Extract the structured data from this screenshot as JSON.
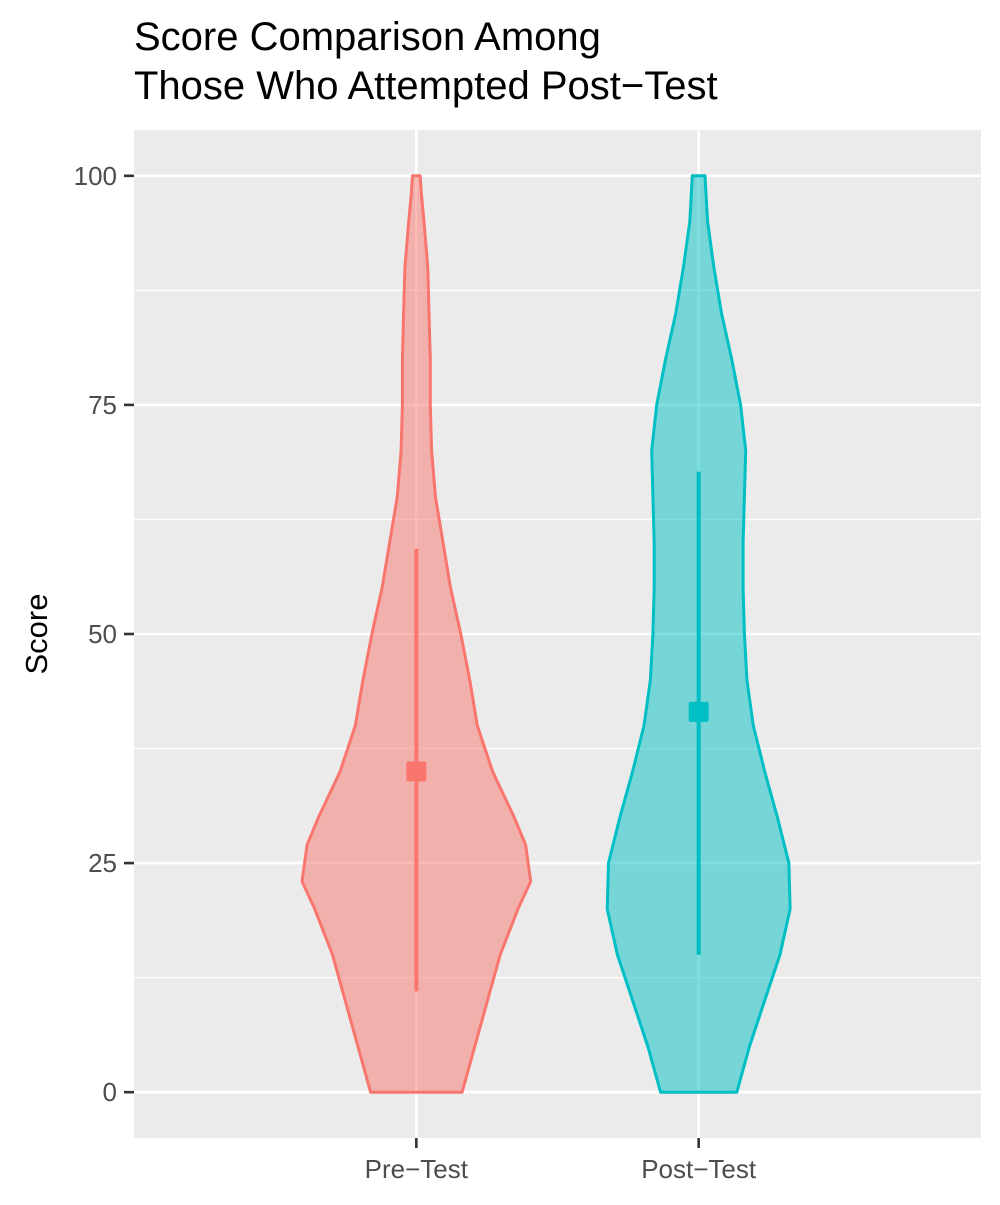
{
  "chart_data": {
    "type": "violin",
    "title": [
      "Score Comparison Among",
      "Those Who Attempted Post−Test"
    ],
    "xlabel": "",
    "ylabel": "Score",
    "ylim": [
      -5,
      105
    ],
    "y_ticks": [
      0,
      25,
      50,
      75,
      100
    ],
    "y_tick_labels": [
      "0",
      "25",
      "50",
      "75",
      "100"
    ],
    "categories": [
      "Pre−Test",
      "Post−Test"
    ],
    "grid": true,
    "legend": "none",
    "series": [
      {
        "category": "Pre−Test",
        "color": "#F8766D",
        "fill": "#F8766D",
        "fill_opacity": 0.5,
        "mean": 35,
        "range": [
          11,
          59.3
        ],
        "profile": [
          [
            0,
            0.36
          ],
          [
            5,
            0.46
          ],
          [
            10,
            0.56
          ],
          [
            15,
            0.66
          ],
          [
            20,
            0.8
          ],
          [
            23,
            0.9
          ],
          [
            27,
            0.86
          ],
          [
            30,
            0.77
          ],
          [
            35,
            0.6
          ],
          [
            40,
            0.48
          ],
          [
            45,
            0.42
          ],
          [
            50,
            0.35
          ],
          [
            55,
            0.27
          ],
          [
            60,
            0.21
          ],
          [
            65,
            0.15
          ],
          [
            70,
            0.12
          ],
          [
            75,
            0.11
          ],
          [
            80,
            0.11
          ],
          [
            85,
            0.1
          ],
          [
            90,
            0.09
          ],
          [
            95,
            0.06
          ],
          [
            98,
            0.04
          ],
          [
            100,
            0.03
          ]
        ]
      },
      {
        "category": "Post−Test",
        "color": "#00BFC4",
        "fill": "#00BFC4",
        "fill_opacity": 0.5,
        "mean": 41.5,
        "range": [
          15,
          67.7
        ],
        "profile": [
          [
            0,
            0.3
          ],
          [
            5,
            0.4
          ],
          [
            10,
            0.52
          ],
          [
            15,
            0.64
          ],
          [
            20,
            0.72
          ],
          [
            25,
            0.71
          ],
          [
            30,
            0.62
          ],
          [
            35,
            0.52
          ],
          [
            40,
            0.43
          ],
          [
            45,
            0.38
          ],
          [
            50,
            0.36
          ],
          [
            55,
            0.35
          ],
          [
            60,
            0.35
          ],
          [
            65,
            0.36
          ],
          [
            70,
            0.37
          ],
          [
            75,
            0.33
          ],
          [
            80,
            0.26
          ],
          [
            85,
            0.18
          ],
          [
            90,
            0.12
          ],
          [
            95,
            0.07
          ],
          [
            100,
            0.05
          ]
        ]
      }
    ]
  }
}
